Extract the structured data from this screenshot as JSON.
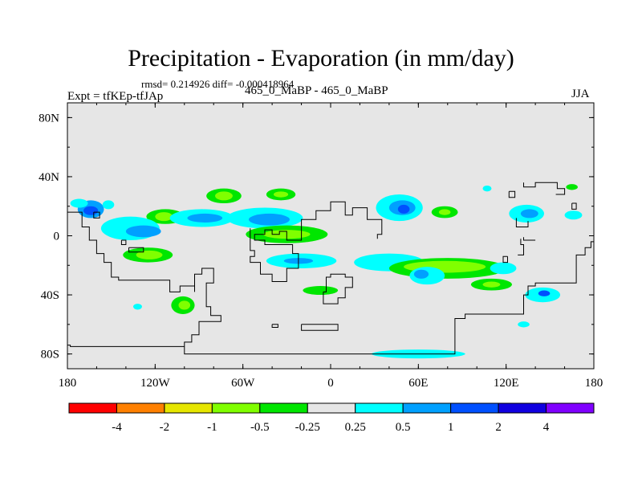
{
  "title": "Precipitation - Evaporation (in mm/day)",
  "stats": "rmsd= 0.214926 diff= -0.000418964",
  "left_string": "Expt = tfKEp-tfJAp",
  "center_string": "465_0_MaBP - 465_0_MaBP",
  "right_string": "JJA",
  "colors": {
    "background": "#e6e6e6",
    "coast": "#000000",
    "levels": [
      "#ff0000",
      "#ff8000",
      "#e6e600",
      "#80ff00",
      "#00e600",
      "#e6e6e6",
      "#00ffff",
      "#00a0ff",
      "#0050ff",
      "#1000e0",
      "#8000ff"
    ]
  },
  "chart_data": {
    "type": "heatmap",
    "projection": "cylindrical equidistant",
    "xlim": [
      -180,
      180
    ],
    "ylim": [
      -90,
      90
    ],
    "x_ticks": [
      {
        "value": -180,
        "label": "180"
      },
      {
        "value": -120,
        "label": "120W"
      },
      {
        "value": -60,
        "label": "60W"
      },
      {
        "value": 0,
        "label": "0"
      },
      {
        "value": 60,
        "label": "60E"
      },
      {
        "value": 120,
        "label": "120E"
      },
      {
        "value": 180,
        "label": "180"
      }
    ],
    "y_ticks": [
      {
        "value": 80,
        "label": "80N"
      },
      {
        "value": 40,
        "label": "40N"
      },
      {
        "value": 0,
        "label": "0"
      },
      {
        "value": -40,
        "label": "40S"
      },
      {
        "value": -80,
        "label": "80S"
      }
    ],
    "colorbar_labels": [
      "-4",
      "-2",
      "-1",
      "-0.5",
      "-0.25",
      "0.25",
      "0.5",
      "1",
      "2",
      "4"
    ],
    "field_blobs": [
      {
        "lon": -164,
        "lat": 18,
        "rlon": 9,
        "rlat": 6,
        "level": 7
      },
      {
        "lon": -164,
        "lat": 17,
        "rlon": 5,
        "rlat": 3,
        "level": 8
      },
      {
        "lon": -172,
        "lat": 22,
        "rlon": 6,
        "rlat": 3,
        "level": 6
      },
      {
        "lon": -152,
        "lat": 21,
        "rlon": 4,
        "rlat": 3,
        "level": 6
      },
      {
        "lon": -113,
        "lat": 13,
        "rlon": 13,
        "rlat": 5,
        "level": 4
      },
      {
        "lon": -114,
        "lat": 13,
        "rlon": 6,
        "rlat": 3,
        "level": 3
      },
      {
        "lon": -137,
        "lat": 5,
        "rlon": 20,
        "rlat": 8,
        "level": 6
      },
      {
        "lon": -128,
        "lat": 3,
        "rlon": 12,
        "rlat": 4,
        "level": 7
      },
      {
        "lon": -88,
        "lat": 12,
        "rlon": 22,
        "rlat": 6,
        "level": 6
      },
      {
        "lon": -86,
        "lat": 12,
        "rlon": 12,
        "rlat": 3,
        "level": 7
      },
      {
        "lon": -73,
        "lat": 27,
        "rlon": 12,
        "rlat": 5,
        "level": 4
      },
      {
        "lon": -73,
        "lat": 27,
        "rlon": 6,
        "rlat": 3,
        "level": 3
      },
      {
        "lon": -45,
        "lat": 12,
        "rlon": 26,
        "rlat": 7,
        "level": 6
      },
      {
        "lon": -42,
        "lat": 11,
        "rlon": 14,
        "rlat": 4,
        "level": 7
      },
      {
        "lon": -34,
        "lat": 28,
        "rlon": 10,
        "rlat": 4,
        "level": 4
      },
      {
        "lon": -34,
        "lat": 28,
        "rlon": 5,
        "rlat": 2,
        "level": 3
      },
      {
        "lon": -30,
        "lat": 1,
        "rlon": 28,
        "rlat": 6,
        "level": 4
      },
      {
        "lon": -30,
        "lat": 1,
        "rlon": 16,
        "rlat": 3,
        "level": 3
      },
      {
        "lon": 47,
        "lat": 19,
        "rlon": 16,
        "rlat": 9,
        "level": 6
      },
      {
        "lon": 49,
        "lat": 19,
        "rlon": 9,
        "rlat": 5,
        "level": 7
      },
      {
        "lon": 50,
        "lat": 18,
        "rlon": 4,
        "rlat": 3,
        "level": 8
      },
      {
        "lon": 78,
        "lat": 16,
        "rlon": 9,
        "rlat": 4,
        "level": 4
      },
      {
        "lon": 78,
        "lat": 16,
        "rlon": 4,
        "rlat": 2,
        "level": 3
      },
      {
        "lon": 134,
        "lat": 15,
        "rlon": 12,
        "rlat": 6,
        "level": 6
      },
      {
        "lon": 136,
        "lat": 15,
        "rlon": 6,
        "rlat": 3,
        "level": 7
      },
      {
        "lon": 107,
        "lat": 32,
        "rlon": 3,
        "rlat": 2,
        "level": 6
      },
      {
        "lon": 165,
        "lat": 33,
        "rlon": 4,
        "rlat": 2,
        "level": 4
      },
      {
        "lon": 166,
        "lat": 14,
        "rlon": 6,
        "rlat": 3,
        "level": 6
      },
      {
        "lon": -125,
        "lat": -13,
        "rlon": 17,
        "rlat": 5,
        "level": 4
      },
      {
        "lon": -124,
        "lat": -13,
        "rlon": 9,
        "rlat": 3,
        "level": 3
      },
      {
        "lon": -20,
        "lat": -17,
        "rlon": 24,
        "rlat": 5,
        "level": 6
      },
      {
        "lon": -22,
        "lat": -17,
        "rlon": 10,
        "rlat": 2,
        "level": 7
      },
      {
        "lon": 40,
        "lat": -18,
        "rlon": 24,
        "rlat": 6,
        "level": 6
      },
      {
        "lon": 80,
        "lat": -22,
        "rlon": 40,
        "rlat": 7,
        "level": 4
      },
      {
        "lon": 78,
        "lat": -21,
        "rlon": 28,
        "rlat": 4,
        "level": 3
      },
      {
        "lon": 66,
        "lat": -27,
        "rlon": 12,
        "rlat": 6,
        "level": 6
      },
      {
        "lon": 62,
        "lat": -26,
        "rlon": 5,
        "rlat": 3,
        "level": 7
      },
      {
        "lon": 110,
        "lat": -33,
        "rlon": 14,
        "rlat": 4,
        "level": 4
      },
      {
        "lon": 110,
        "lat": -33,
        "rlon": 6,
        "rlat": 2,
        "level": 3
      },
      {
        "lon": 118,
        "lat": -22,
        "rlon": 9,
        "rlat": 4,
        "level": 6
      },
      {
        "lon": -7,
        "lat": -37,
        "rlon": 12,
        "rlat": 3,
        "level": 4
      },
      {
        "lon": -101,
        "lat": -47,
        "rlon": 8,
        "rlat": 6,
        "level": 4
      },
      {
        "lon": -100,
        "lat": -47,
        "rlon": 4,
        "rlat": 3,
        "level": 3
      },
      {
        "lon": -132,
        "lat": -48,
        "rlon": 3,
        "rlat": 2,
        "level": 6
      },
      {
        "lon": 145,
        "lat": -40,
        "rlon": 12,
        "rlat": 5,
        "level": 6
      },
      {
        "lon": 146,
        "lat": -39,
        "rlon": 4,
        "rlat": 2,
        "level": 8
      },
      {
        "lon": 132,
        "lat": -60,
        "rlon": 4,
        "rlat": 2,
        "level": 6
      },
      {
        "lon": 60,
        "lat": -80,
        "rlon": 32,
        "rlat": 3,
        "level": 6
      }
    ],
    "coastlines": [
      [
        [
          -180,
          16
        ],
        [
          -170,
          16
        ],
        [
          -170,
          6
        ],
        [
          -165,
          6
        ],
        [
          -165,
          -3
        ],
        [
          -160,
          -3
        ],
        [
          -160,
          -12
        ],
        [
          -155,
          -12
        ],
        [
          -155,
          -18
        ],
        [
          -150,
          -18
        ],
        [
          -150,
          -28
        ],
        [
          -145,
          -28
        ],
        [
          -145,
          -30
        ],
        [
          -110,
          -30
        ],
        [
          -110,
          -38
        ],
        [
          -103,
          -38
        ],
        [
          -103,
          -34
        ],
        [
          -93,
          -34
        ],
        [
          -93,
          -26
        ],
        [
          -88,
          -26
        ],
        [
          -88,
          -22
        ],
        [
          -80,
          -22
        ],
        [
          -80,
          -32
        ],
        [
          -85,
          -32
        ],
        [
          -85,
          -48
        ],
        [
          -82,
          -48
        ],
        [
          -82,
          -54
        ],
        [
          -75,
          -54
        ],
        [
          -75,
          -58
        ],
        [
          -90,
          -58
        ],
        [
          -90,
          -67
        ],
        [
          -95,
          -67
        ],
        [
          -95,
          -72
        ],
        [
          -100,
          -72
        ],
        [
          -100,
          -74
        ],
        [
          -100,
          -80
        ],
        [
          85,
          -80
        ],
        [
          85,
          -56
        ],
        [
          92,
          -56
        ],
        [
          92,
          -53
        ],
        [
          132,
          -53
        ],
        [
          132,
          -40
        ],
        [
          135,
          -40
        ],
        [
          135,
          -34
        ],
        [
          140,
          -34
        ],
        [
          140,
          -32
        ],
        [
          168,
          -32
        ],
        [
          168,
          -13
        ],
        [
          174,
          -13
        ],
        [
          174,
          -8
        ],
        [
          178,
          -8
        ],
        [
          178,
          -4
        ],
        [
          180,
          -4
        ]
      ],
      [
        [
          -180,
          -74
        ],
        [
          -178,
          -74
        ],
        [
          -178,
          -75
        ],
        [
          -100,
          -75
        ]
      ],
      [
        [
          -55,
          5
        ],
        [
          -55,
          -10
        ],
        [
          -52,
          -10
        ],
        [
          -52,
          -14
        ],
        [
          -55,
          -14
        ],
        [
          -55,
          -18
        ],
        [
          -48,
          -18
        ],
        [
          -48,
          -26
        ],
        [
          -40,
          -26
        ],
        [
          -40,
          -31
        ],
        [
          -30,
          -31
        ],
        [
          -30,
          -22
        ],
        [
          -22,
          -22
        ],
        [
          -22,
          -12
        ],
        [
          -26,
          -12
        ],
        [
          -26,
          -6
        ],
        [
          -45,
          -6
        ],
        [
          -45,
          -3
        ],
        [
          -52,
          -3
        ],
        [
          -52,
          1
        ],
        [
          -45,
          1
        ],
        [
          -45,
          4
        ],
        [
          -40,
          4
        ],
        [
          -40,
          1
        ],
        [
          -35,
          1
        ],
        [
          -35,
          3
        ],
        [
          -30,
          3
        ],
        [
          -30,
          -3
        ],
        [
          -20,
          -3
        ],
        [
          -20,
          11
        ],
        [
          -10,
          11
        ],
        [
          -10,
          17
        ],
        [
          0,
          17
        ],
        [
          0,
          23
        ],
        [
          10,
          23
        ],
        [
          10,
          14
        ],
        [
          15,
          14
        ],
        [
          15,
          19
        ],
        [
          25,
          19
        ],
        [
          25,
          11
        ],
        [
          35,
          11
        ],
        [
          35,
          1
        ],
        [
          32,
          1
        ],
        [
          32,
          -2
        ]
      ],
      [
        [
          -5,
          -38
        ],
        [
          -3,
          -38
        ],
        [
          -3,
          -28
        ],
        [
          0,
          -28
        ],
        [
          0,
          -26
        ],
        [
          10,
          -26
        ],
        [
          10,
          -28
        ],
        [
          15,
          -28
        ],
        [
          15,
          -35
        ],
        [
          10,
          -35
        ],
        [
          10,
          -42
        ],
        [
          5,
          -42
        ],
        [
          5,
          -46
        ],
        [
          -5,
          -46
        ],
        [
          -5,
          -38
        ]
      ],
      [
        [
          -20,
          -60
        ],
        [
          -20,
          -64
        ],
        [
          5,
          -64
        ],
        [
          5,
          -60
        ],
        [
          -20,
          -60
        ]
      ],
      [
        [
          -40,
          -60
        ],
        [
          -40,
          -62
        ],
        [
          -36,
          -62
        ],
        [
          -36,
          -60
        ],
        [
          -40,
          -60
        ]
      ],
      [
        [
          -93,
          -34
        ],
        [
          -93,
          -38
        ]
      ],
      [
        [
          -143,
          -3
        ],
        [
          -140,
          -3
        ],
        [
          -140,
          -6
        ],
        [
          -143,
          -6
        ],
        [
          -143,
          -3
        ]
      ],
      [
        [
          -138,
          -8
        ],
        [
          -128,
          -8
        ],
        [
          -128,
          -11
        ],
        [
          -138,
          -11
        ],
        [
          -138,
          -8
        ]
      ],
      [
        [
          -162,
          16
        ],
        [
          -158,
          16
        ],
        [
          -158,
          12
        ],
        [
          -162,
          12
        ],
        [
          -162,
          16
        ]
      ],
      [
        [
          121,
          -14
        ],
        [
          118,
          -14
        ],
        [
          118,
          -18
        ],
        [
          121,
          -18
        ],
        [
          121,
          -14
        ]
      ],
      [
        [
          122,
          30
        ],
        [
          126,
          30
        ],
        [
          126,
          26
        ],
        [
          122,
          26
        ],
        [
          122,
          30
        ]
      ],
      [
        [
          132,
          36
        ],
        [
          132,
          33
        ],
        [
          140,
          33
        ],
        [
          140,
          36
        ],
        [
          155,
          36
        ],
        [
          155,
          32
        ],
        [
          160,
          32
        ],
        [
          160,
          28
        ],
        [
          154,
          28
        ]
      ],
      [
        [
          165,
          22
        ],
        [
          168,
          22
        ],
        [
          168,
          18
        ],
        [
          165,
          18
        ],
        [
          165,
          22
        ]
      ],
      [
        [
          127,
          12
        ],
        [
          127,
          6
        ],
        [
          135,
          6
        ],
        [
          135,
          10
        ]
      ],
      [
        [
          130,
          -2
        ],
        [
          130,
          -6
        ],
        [
          132,
          -6
        ],
        [
          132,
          -13
        ],
        [
          128,
          -13
        ]
      ],
      [
        [
          132,
          -1
        ],
        [
          132,
          -3
        ],
        [
          140,
          -3
        ]
      ]
    ]
  }
}
